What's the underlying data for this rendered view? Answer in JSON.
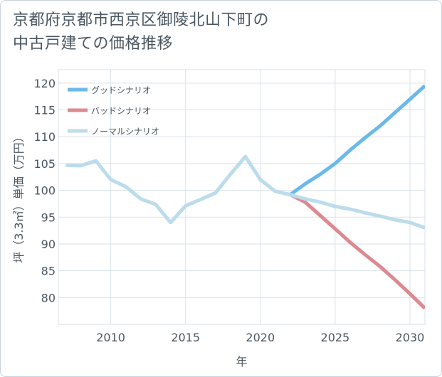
{
  "header": {
    "title_line1": "京都府京都市西京区御陵北山下町の",
    "title_line2": "中古戸建ての価格推移"
  },
  "chart_data": {
    "type": "line",
    "title": "京都府京都市西京区御陵北山下町の中古戸建ての価格推移",
    "xlabel": "年",
    "ylabel": "坪（3.3㎡）単価（万円）",
    "xlim": [
      2006.5,
      2031
    ],
    "ylim": [
      75,
      122.5
    ],
    "xticks": [
      2010,
      2015,
      2020,
      2025,
      2030
    ],
    "yticks": [
      80,
      85,
      90,
      95,
      100,
      105,
      110,
      115,
      120
    ],
    "grid": true,
    "legend_position": "top-left",
    "series": [
      {
        "name": "グッドシナリオ",
        "color": "#6ab9ea",
        "x": [
          2022,
          2023,
          2024,
          2025,
          2026,
          2027,
          2028,
          2029,
          2030,
          2031
        ],
        "y": [
          99.2,
          101.2,
          103.0,
          105.0,
          107.5,
          109.8,
          112.0,
          114.5,
          117.0,
          119.5
        ]
      },
      {
        "name": "バッドシナリオ",
        "color": "#dd8990",
        "x": [
          2022,
          2023,
          2024,
          2025,
          2026,
          2027,
          2028,
          2029,
          2030,
          2031
        ],
        "y": [
          99.2,
          97.8,
          95.3,
          92.8,
          90.3,
          88.0,
          85.8,
          83.3,
          80.7,
          78.0
        ]
      },
      {
        "name": "ノーマルシナリオ",
        "color": "#bcdcec",
        "x": [
          2007,
          2008,
          2009,
          2010,
          2011,
          2012,
          2013,
          2014,
          2015,
          2016,
          2017,
          2018,
          2019,
          2020,
          2021,
          2022,
          2023,
          2024,
          2025,
          2026,
          2027,
          2028,
          2029,
          2030,
          2031
        ],
        "y": [
          104.7,
          104.6,
          105.5,
          102.0,
          100.7,
          98.4,
          97.4,
          94.0,
          97.1,
          98.3,
          99.5,
          103.0,
          106.3,
          102.0,
          99.8,
          99.2,
          98.4,
          97.8,
          97.0,
          96.5,
          95.8,
          95.2,
          94.5,
          94.0,
          93.0
        ]
      }
    ]
  }
}
